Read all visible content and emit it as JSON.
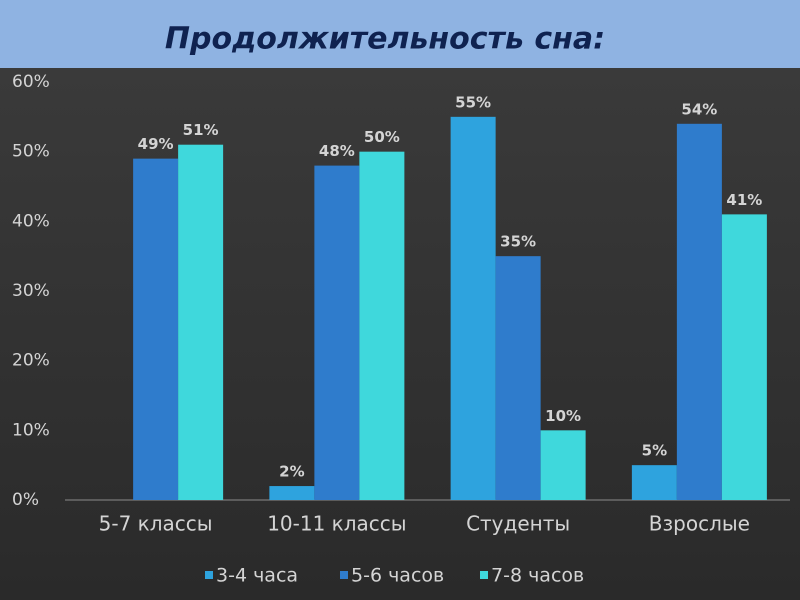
{
  "chart_data": {
    "type": "bar",
    "title": "Продолжительность сна:",
    "categories": [
      "5-7 классы",
      "10-11 классы",
      "Студенты",
      "Взрослые"
    ],
    "series": [
      {
        "name": "3-4 часа",
        "color": "#2ea3de",
        "values": [
          null,
          2,
          55,
          5
        ],
        "value_labels": [
          null,
          "2%",
          "55%",
          "5%"
        ]
      },
      {
        "name": "5-6 часов",
        "color": "#2f7ccc",
        "values": [
          49,
          48,
          35,
          54
        ],
        "value_labels": [
          "49%",
          "48%",
          "35%",
          "54%"
        ]
      },
      {
        "name": "7-8 часов",
        "color": "#3fd8dc",
        "values": [
          51,
          50,
          10,
          41
        ],
        "value_labels": [
          "51%",
          "50%",
          "10%",
          "41%"
        ]
      }
    ],
    "ylim": [
      0,
      60
    ],
    "yticks": [
      {
        "value": 0,
        "label": "0%"
      },
      {
        "value": 10,
        "label": "10%"
      },
      {
        "value": 20,
        "label": "20%"
      },
      {
        "value": 30,
        "label": "30%"
      },
      {
        "value": 40,
        "label": "40%"
      },
      {
        "value": 50,
        "label": "50%"
      },
      {
        "value": 60,
        "label": "60%"
      }
    ],
    "grid": false,
    "legend": "bottom"
  }
}
